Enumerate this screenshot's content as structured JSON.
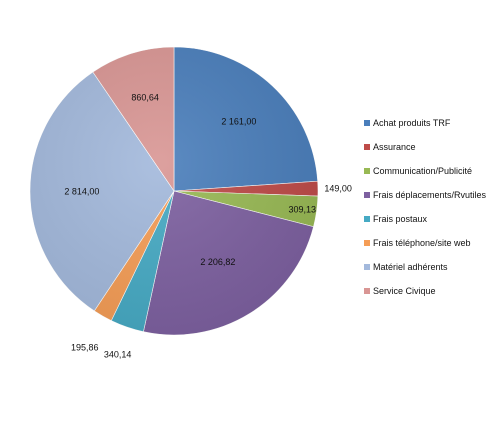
{
  "chart_data": {
    "type": "pie",
    "categories": [
      "Achat produits TRF",
      "Assurance",
      "Communication/Publicité",
      "Frais déplacements/Rvutiles",
      "Frais postaux",
      "Frais téléphone/site web",
      "Matériel adhérents",
      "Service Civique"
    ],
    "values": [
      2161.0,
      149.0,
      309.13,
      2206.82,
      340.14,
      195.86,
      2814.0,
      860.64
    ],
    "data_labels": [
      "2 161,00",
      "149,00",
      "309,13",
      "2 206,82",
      "340,14",
      "195,86",
      "2 814,00",
      "860,64"
    ],
    "colors": [
      "#4a7ebb",
      "#be4b48",
      "#98b954",
      "#7d60a0",
      "#46aac4",
      "#f59d56",
      "#a3b9dc",
      "#d99694"
    ],
    "start_angle_deg": 0,
    "direction": "clockwise",
    "legend_position": "right"
  }
}
